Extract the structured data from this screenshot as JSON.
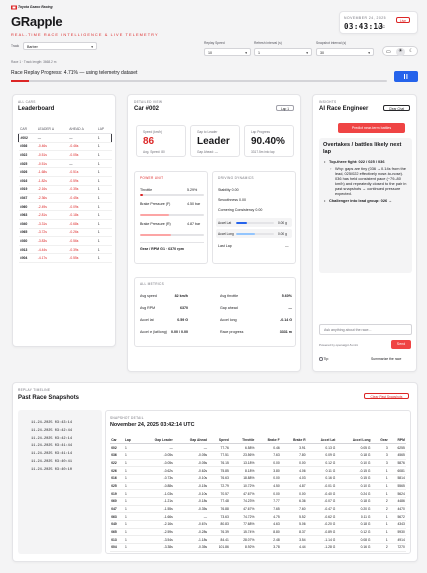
{
  "header": {
    "brand": "Toyota Gazoo Racing",
    "title": "GRapple",
    "tagline": "REAL-TIME RACE INTELLIGENCE & LIVE TELEMETRY",
    "date": "NOVEMBER 24, 2025",
    "time": "03:43:13",
    "timezone": "UTC",
    "live_label": "Live"
  },
  "controls": {
    "track_label": "Track",
    "track_value": "Barber",
    "track_info": "Race 1 · Track length: 3668.2 m",
    "replay_speed_label": "Replay Speed",
    "replay_speed_value": "10",
    "refresh_label": "Refresh interval (s)",
    "refresh_value": "1",
    "snapshot_label": "Snapshot interval (s)",
    "snapshot_value": "30",
    "progress_text": "Race Replay Progress: 4.71% — using telemetry dataset",
    "progress_fraction": 0.0471,
    "pause_icon": "pause-icon"
  },
  "leaderboard": {
    "section": "ALL CARS",
    "title": "Leaderboard",
    "columns": [
      "CAR",
      "LEADER Δ",
      "AHEAD Δ",
      "LAP"
    ],
    "rows": [
      [
        "#002",
        "—",
        "—",
        "1"
      ],
      [
        "#036",
        "-0.46s",
        "-0.46s",
        "1"
      ],
      [
        "#022",
        "-0.51s",
        "-0.05s",
        "1"
      ],
      [
        "#025",
        "-0.51s",
        "—",
        "1"
      ],
      [
        "#026",
        "-1.68s",
        "-0.51s",
        "1"
      ],
      [
        "#016",
        "-1.82s",
        "-0.59s",
        "1"
      ],
      [
        "#019",
        "-2.16s",
        "-0.35s",
        "1"
      ],
      [
        "#047",
        "-2.36s",
        "-0.45s",
        "1"
      ],
      [
        "#060",
        "-2.49s",
        "-0.09s",
        "1"
      ],
      [
        "#063",
        "-2.81s",
        "-0.18s",
        "1"
      ],
      [
        "#040",
        "-3.31s",
        "-0.68s",
        "1"
      ],
      [
        "#065",
        "-3.72s",
        "-0.26s",
        "1"
      ],
      [
        "#030",
        "-3.83s",
        "-0.56s",
        "1"
      ],
      [
        "#013",
        "-4.44s",
        "-0.39s",
        "1"
      ],
      [
        "#004",
        "-4.17s",
        "-0.55s",
        "1"
      ]
    ]
  },
  "detail": {
    "section": "DETAILED VIEW",
    "car": "Car #002",
    "lap_badge": "Lap 1",
    "speed_label": "Speed (km/h)",
    "speed_value": "86",
    "speed_sub": "Avg. Speed: 80",
    "gap_label": "Gap to Leader",
    "gap_value": "Leader",
    "gap_sub": "Gap Ahead: —",
    "lap_progress_label": "Lap Progress",
    "lap_progress_value": "90.40%",
    "lap_progress_sub": "3317.5m into lap",
    "power_title": "POWER UNIT",
    "throttle_label": "Throttle",
    "throttle_value": "5.29%",
    "throttle_fraction": 0.0529,
    "brake_f_label": "Brake Pressure (F)",
    "brake_f_value": "4.50 bar",
    "brake_f_fraction": 0.45,
    "brake_r_label": "Brake Pressure (R)",
    "brake_r_value": "4.87 bar",
    "brake_r_fraction": 0.49,
    "gear_text": "Gear / RPM  G1 · 6370 rpm",
    "dynamics_title": "DRIVING DYNAMICS",
    "stability": "Stability 0.00",
    "smoothness": "Smoothness 0.00",
    "cornering": "Cornering Consistency 0.00",
    "accel_lat_label": "Accel Lat",
    "accel_lat_value": "0.00 g",
    "accel_long_label": "Accel Long",
    "accel_long_value": "0.00 g",
    "last_lap_label": "Last Lap",
    "last_lap_value": "—",
    "metrics_title": "ALL METRICS",
    "metrics": [
      {
        "label": "Avg speed",
        "value": "82 km/h",
        "label2": "Avg throttle",
        "value2": "5.60%"
      },
      {
        "label": "Avg RPM",
        "value": "6370",
        "label2": "Gap ahead",
        "value2": "—"
      },
      {
        "label": "Accel lat",
        "value": "0.59 G",
        "label2": "Accel long",
        "value2": "-0.14 G"
      },
      {
        "label": "Accel σ (lat/long)",
        "value": "0.00 / 0.00",
        "label2": "Race progress",
        "value2": "3331 m"
      }
    ]
  },
  "ai": {
    "section": "INSIGHTS",
    "title": "AI Race Engineer",
    "clear_chat": "Clear Chat",
    "predict_button": "Predict near-term battles",
    "heading": "Overtakes / battles likely next lap",
    "bullet1_bold": "Top-three fight: 022 / 025 / 036",
    "sub_bullet": "Why: gaps are tiny (036 →0.14s from the lead, 025/022 effectively nose-to-nose). 036 has held consistent pace (~79–80 km/h) and repeatedly closed to the pair in past snapshots → continued pressure expected.",
    "bullet2_bold": "Challenger into lead group: 026 →",
    "input_placeholder": "Ask anything about the race...",
    "powered": "Powered by openaigpt-5-mini",
    "send": "Send",
    "tip": "Tip:",
    "summarize": "Summarize the race"
  },
  "timeline": {
    "section": "REPLAY TIMELINE",
    "title": "Past Race Snapshots",
    "clear_button": "Clear Past Snapshots",
    "list": [
      "11-24-2025 03:43:14",
      "11-24-2025 03:42:44",
      "11-24-2025 03:42:14",
      "11-24-2025 03:41:44",
      "11-24-2025 03:41:14",
      "11-24-2025 03:40:41",
      "11-24-2025 03:40:10"
    ],
    "detail_section": "SNAPSHOT DETAIL",
    "detail_title": "November 24, 2025 03:42:14 UTC",
    "columns": [
      "Car",
      "Lap",
      "Gap Leader",
      "Gap Ahead",
      "Speed",
      "Throttle",
      "Brake F",
      "Brake R",
      "Accel Lat",
      "Accel Long",
      "Gear",
      "RPM"
    ],
    "rows": [
      [
        "002",
        "1",
        "—",
        "—",
        "77.76",
        "6.58%",
        "0.46",
        "3.91",
        "0.13 G",
        "0.05 G",
        "3",
        "6255"
      ],
      [
        "036",
        "1",
        "-0.05s",
        "-0.05s",
        "77.51",
        "23.56%",
        "7.63",
        "7.80",
        "0.09 G",
        "0.18 G",
        "3",
        "4565"
      ],
      [
        "022",
        "1",
        "-0.05s",
        "-0.05s",
        "76.15",
        "13.18%",
        "0.00",
        "0.00",
        "0.12 G",
        "0.10 G",
        "3",
        "5876"
      ],
      [
        "026",
        "1",
        "-0.62s",
        "-0.62s",
        "75.85",
        "8.18%",
        "3.80",
        "4.06",
        "0.11 G",
        "-0.15 G",
        "1",
        "6081"
      ],
      [
        "016",
        "1",
        "-0.73s",
        "-0.10s",
        "76.63",
        "18.88%",
        "0.00",
        "4.03",
        "0.16 G",
        "0.15 G",
        "1",
        "5814"
      ],
      [
        "025",
        "1",
        "-0.88s",
        "-0.15s",
        "72.79",
        "10.72%",
        "4.50",
        "4.87",
        "-0.01 G",
        "0.10 G",
        "1",
        "5565"
      ],
      [
        "019",
        "1",
        "-1.03s",
        "-0.10s",
        "70.57",
        "47.67%",
        "0.00",
        "0.00",
        "-0.40 G",
        "0.24 G",
        "1",
        "5624"
      ],
      [
        "060",
        "1",
        "-1.21s",
        "-0.18s",
        "77.48",
        "74.23%",
        "7.77",
        "6.36",
        "-0.07 G",
        "0.18 G",
        "2",
        "4486"
      ],
      [
        "047",
        "1",
        "-1.55s",
        "-0.35s",
        "76.88",
        "47.67%",
        "7.65",
        "7.60",
        "-0.47 G",
        "0.20 G",
        "2",
        "4470"
      ],
      [
        "063",
        "1",
        "-1.66s",
        "—",
        "73.63",
        "74.72%",
        "4.75",
        "5.52",
        "-0.62 G",
        "0.11 G",
        "1",
        "5672"
      ],
      [
        "040",
        "1",
        "-2.16s",
        "-0.67s",
        "80.83",
        "77.68%",
        "4.63",
        "5.06",
        "-0.20 G",
        "0.18 G",
        "1",
        "4343"
      ],
      [
        "065",
        "1",
        "-2.59s",
        "-0.28s",
        "76.39",
        "15.74%",
        "8.80",
        "8.37",
        "-0.89 G",
        "0.12 G",
        "1",
        "5930"
      ],
      [
        "013",
        "1",
        "-3.54s",
        "-1.18s",
        "84.41",
        "28.07%",
        "2.48",
        "3.54",
        "-1.14 G",
        "0.08 G",
        "1",
        "4914"
      ],
      [
        "004",
        "1",
        "-3.38s",
        "-0.35s",
        "101.86",
        "8.92%",
        "3.78",
        "4.44",
        "-1.28 G",
        "0.16 G",
        "2",
        "7270"
      ],
      [
        "030",
        "1",
        "-4.03s",
        "-0.68s",
        "99.94",
        "0.00%",
        "9.52",
        "10.00",
        "-0.82 G",
        "-0.20 G",
        "1",
        "4957"
      ]
    ]
  },
  "colors": {
    "accent": "#dc2626",
    "blue": "#2563eb",
    "bar_red": "#fca5a5"
  }
}
